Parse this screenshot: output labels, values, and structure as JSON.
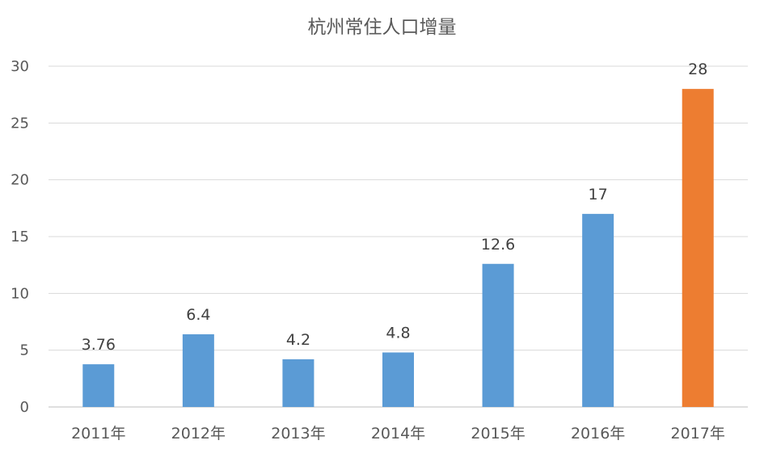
{
  "chart_data": {
    "type": "bar",
    "title": "杭州常住人口增量",
    "xlabel": "",
    "ylabel": "",
    "categories": [
      "2011年",
      "2012年",
      "2013年",
      "2014年",
      "2015年",
      "2016年",
      "2017年"
    ],
    "values": [
      3.76,
      6.4,
      4.2,
      4.8,
      12.6,
      17,
      28
    ],
    "data_labels": [
      "3.76",
      "6.4",
      "4.2",
      "4.8",
      "12.6",
      "17",
      "28"
    ],
    "ylim": [
      0,
      30
    ],
    "yticks": [
      0,
      5,
      10,
      15,
      20,
      25,
      30
    ],
    "grid": true,
    "legend": "none",
    "colors": {
      "default_bar": "#5b9bd5",
      "highlight_bar": "#ed7d31",
      "highlight_category": "2017年"
    }
  }
}
